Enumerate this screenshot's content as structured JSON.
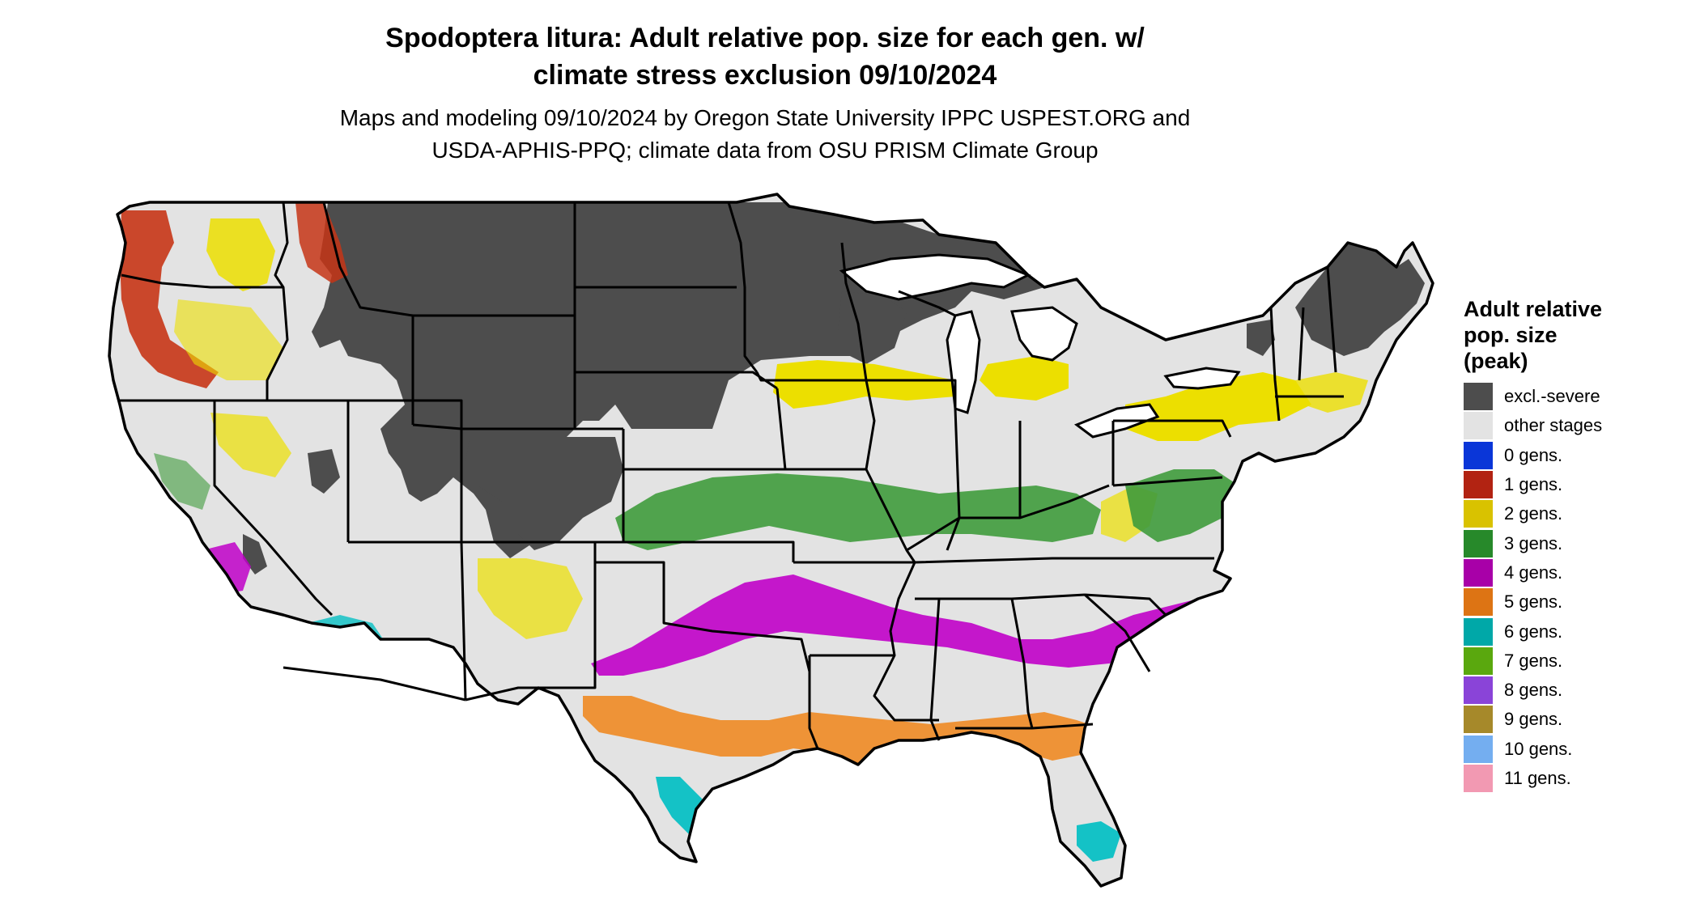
{
  "title": {
    "line1": "Spodoptera litura: Adult relative pop. size for each gen. w/",
    "line2": "climate stress exclusion 09/10/2024"
  },
  "subtitle": {
    "line1": "Maps and modeling 09/10/2024 by Oregon State University IPPC USPEST.ORG and",
    "line2": "USDA-APHIS-PPQ; climate data from OSU PRISM Climate Group"
  },
  "legend": {
    "title_lines": [
      "Adult relative",
      "pop. size",
      "(peak)"
    ],
    "items": [
      {
        "label": "excl.-severe",
        "color": "#4d4d4d"
      },
      {
        "label": "other stages",
        "color": "#e3e3e3"
      },
      {
        "label": "0 gens.",
        "color": "#0a36d8"
      },
      {
        "label": "1 gens.",
        "color": "#b22312"
      },
      {
        "label": "2 gens.",
        "color": "#d9c200"
      },
      {
        "label": "3 gens.",
        "color": "#27892a"
      },
      {
        "label": "4 gens.",
        "color": "#a800a8"
      },
      {
        "label": "5 gens.",
        "color": "#dd7414"
      },
      {
        "label": "6 gens.",
        "color": "#00a8a8"
      },
      {
        "label": "7 gens.",
        "color": "#5aa80e"
      },
      {
        "label": "8 gens.",
        "color": "#8a44d8"
      },
      {
        "label": "9 gens.",
        "color": "#a6892a"
      },
      {
        "label": "10 gens.",
        "color": "#74aef0"
      },
      {
        "label": "11 gens.",
        "color": "#f299b2"
      }
    ]
  },
  "map": {
    "region": "Contiguous United States",
    "colors": {
      "excl_severe": "#4d4d4d",
      "other_stages": "#e3e3e3",
      "gen1": "#c63516",
      "gen2": "#ecdf00",
      "gen3": "#3f9b3c",
      "gen4": "#c000c8",
      "gen5": "#ee8a24",
      "gen6": "#14c2c6",
      "gen7": "#6cc010",
      "border": "#000000"
    }
  }
}
